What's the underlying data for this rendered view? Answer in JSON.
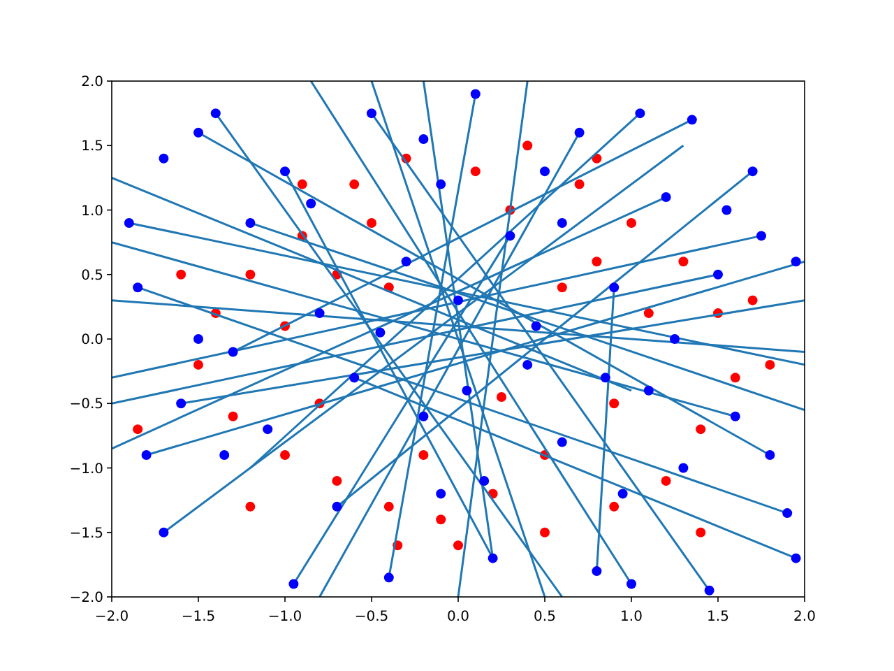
{
  "chart_data": {
    "type": "scatter",
    "xlim": [
      -2,
      2
    ],
    "ylim": [
      -2,
      2
    ],
    "xticks": [
      {
        "value": -2,
        "label": "−2.0"
      },
      {
        "value": -1.5,
        "label": "−1.5"
      },
      {
        "value": -1,
        "label": "−1.0"
      },
      {
        "value": -0.5,
        "label": "−0.5"
      },
      {
        "value": 0,
        "label": "0.0"
      },
      {
        "value": 0.5,
        "label": "0.5"
      },
      {
        "value": 1,
        "label": "1.0"
      },
      {
        "value": 1.5,
        "label": "1.5"
      },
      {
        "value": 2,
        "label": "2.0"
      }
    ],
    "yticks": [
      {
        "value": -2,
        "label": "−2.0"
      },
      {
        "value": -1.5,
        "label": "−1.5"
      },
      {
        "value": -1,
        "label": "−1.0"
      },
      {
        "value": -0.5,
        "label": "−0.5"
      },
      {
        "value": 0,
        "label": "0.0"
      },
      {
        "value": 0.5,
        "label": "0.5"
      },
      {
        "value": 1,
        "label": "1.0"
      },
      {
        "value": 1.5,
        "label": "1.5"
      },
      {
        "value": 2,
        "label": "2.0"
      }
    ],
    "grid": false,
    "series": [
      {
        "color": "#ff0000",
        "marker": "circle",
        "x": [
          -0.9,
          -0.6,
          -0.3,
          0.1,
          0.4,
          0.7,
          1.0,
          1.3,
          1.5,
          1.6,
          1.4,
          1.2,
          0.9,
          0.5,
          0.2,
          -0.1,
          -0.4,
          -0.7,
          -1.0,
          -1.3,
          -1.5,
          -1.4,
          -1.2,
          -0.5,
          0.3,
          0.8,
          1.1,
          0.9,
          0.5,
          -0.2,
          -0.8,
          -1.0,
          -0.7,
          1.8,
          -1.85,
          0.0,
          -0.35,
          0.6,
          -0.4,
          0.25,
          1.7,
          -1.6,
          0.8,
          -0.9,
          1.4,
          -1.2
        ],
        "values": [
          0.8,
          1.2,
          1.4,
          1.3,
          1.5,
          1.2,
          0.9,
          0.6,
          0.2,
          -0.3,
          -0.7,
          -1.1,
          -1.3,
          -1.5,
          -1.2,
          -1.4,
          -1.3,
          -1.1,
          -0.9,
          -0.6,
          -0.2,
          0.2,
          0.5,
          0.9,
          1.0,
          0.6,
          0.2,
          -0.5,
          -0.9,
          -0.9,
          -0.5,
          0.1,
          0.5,
          -0.2,
          -0.7,
          -1.6,
          -1.6,
          0.4,
          0.4,
          -0.45,
          0.3,
          0.5,
          1.4,
          1.2,
          -1.5,
          -1.3
        ]
      },
      {
        "type": "line",
        "color": "#1f77b4",
        "marker": "none",
        "line_style": "solid",
        "x": [
          -2,
          1.0
        ],
        "values": [
          1.25,
          -0.4
        ]
      },
      {
        "type": "line",
        "color": "#1f77b4",
        "marker": "none",
        "line_style": "solid",
        "x": [
          -2,
          2
        ],
        "values": [
          0.3,
          -0.1
        ]
      },
      {
        "type": "line",
        "color": "#1f77b4",
        "marker": "none",
        "line_style": "solid",
        "x": [
          -2,
          1.5
        ],
        "values": [
          -0.5,
          0.5
        ]
      },
      {
        "type": "line",
        "color": "#1f77b4",
        "marker": "none",
        "line_style": "solid",
        "x": [
          -2,
          1.2
        ],
        "values": [
          -0.85,
          1.1
        ]
      },
      {
        "type": "line",
        "color": "#1f77b4",
        "marker": "none",
        "line_style": "solid",
        "x": [
          -1.4,
          0.6
        ],
        "values": [
          1.75,
          -2
        ]
      },
      {
        "type": "line",
        "color": "#1f77b4",
        "marker": "none",
        "line_style": "solid",
        "x": [
          -0.95,
          0.3
        ],
        "values": [
          -1.9,
          0.8
        ]
      },
      {
        "type": "line",
        "color": "#1f77b4",
        "marker": "none",
        "line_style": "solid",
        "x": [
          -0.5,
          0.5
        ],
        "values": [
          2,
          -2
        ]
      },
      {
        "type": "line",
        "color": "#1f77b4",
        "marker": "none",
        "line_style": "solid",
        "x": [
          -0.2,
          0.2
        ],
        "values": [
          2,
          -1.7
        ]
      },
      {
        "type": "line",
        "color": "#1f77b4",
        "marker": "none",
        "line_style": "solid",
        "x": [
          0.1,
          -0.4
        ],
        "values": [
          1.9,
          -1.85
        ]
      },
      {
        "type": "line",
        "color": "#1f77b4",
        "marker": "none",
        "line_style": "solid",
        "x": [
          0.4,
          0.0
        ],
        "values": [
          2,
          -2
        ]
      },
      {
        "type": "line",
        "color": "#1f77b4",
        "marker": "none",
        "line_style": "solid",
        "x": [
          0.7,
          -0.8
        ],
        "values": [
          1.6,
          -2
        ]
      },
      {
        "type": "line",
        "color": "#1f77b4",
        "marker": "none",
        "line_style": "solid",
        "x": [
          1.05,
          -1.2
        ],
        "values": [
          1.75,
          -1.0
        ]
      },
      {
        "type": "line",
        "color": "#1f77b4",
        "marker": "none",
        "line_style": "solid",
        "x": [
          1.35,
          -1.3
        ],
        "values": [
          1.7,
          -0.1
        ]
      },
      {
        "type": "line",
        "color": "#1f77b4",
        "marker": "none",
        "line_style": "solid",
        "x": [
          1.75,
          -2
        ],
        "values": [
          0.8,
          -0.3
        ]
      },
      {
        "type": "line",
        "color": "#1f77b4",
        "marker": "none",
        "line_style": "solid",
        "x": [
          2,
          -1.6
        ],
        "values": [
          0.3,
          -0.5
        ]
      },
      {
        "type": "line",
        "color": "#1f77b4",
        "marker": "none",
        "line_style": "solid",
        "x": [
          2,
          -1.9
        ],
        "values": [
          -0.2,
          0.9
        ]
      },
      {
        "type": "line",
        "color": "#1f77b4",
        "marker": "none",
        "line_style": "solid",
        "x": [
          1.8,
          -1.5
        ],
        "values": [
          -0.9,
          1.6
        ]
      },
      {
        "type": "line",
        "color": "#1f77b4",
        "marker": "none",
        "line_style": "solid",
        "x": [
          1.95,
          -0.6
        ],
        "values": [
          -1.7,
          -0.3
        ]
      },
      {
        "type": "line",
        "color": "#1f77b4",
        "marker": "none",
        "line_style": "solid",
        "x": [
          1.45,
          -0.5
        ],
        "values": [
          -1.95,
          1.75
        ]
      },
      {
        "type": "line",
        "color": "#1f77b4",
        "marker": "none",
        "line_style": "solid",
        "x": [
          1.0,
          -0.85
        ],
        "values": [
          -1.9,
          2
        ]
      },
      {
        "type": "line",
        "color": "#1f77b4",
        "marker": "none",
        "line_style": "solid",
        "x": [
          0.8,
          0.9
        ],
        "values": [
          -1.8,
          0.4
        ]
      },
      {
        "type": "line",
        "color": "#1f77b4",
        "marker": "none",
        "line_style": "solid",
        "x": [
          -1.7,
          1.3
        ],
        "values": [
          -1.5,
          1.5
        ]
      },
      {
        "type": "line",
        "color": "#1f77b4",
        "marker": "none",
        "line_style": "solid",
        "x": [
          -1.8,
          2
        ],
        "values": [
          -0.9,
          0.6
        ]
      },
      {
        "type": "line",
        "color": "#1f77b4",
        "marker": "none",
        "line_style": "solid",
        "x": [
          -0.7,
          1.7
        ],
        "values": [
          -1.3,
          1.3
        ]
      },
      {
        "type": "line",
        "color": "#1f77b4",
        "marker": "none",
        "line_style": "solid",
        "x": [
          0.2,
          -1.0
        ],
        "values": [
          -1.7,
          1.3
        ]
      },
      {
        "type": "line",
        "color": "#1f77b4",
        "marker": "none",
        "line_style": "solid",
        "x": [
          -1.85,
          1.9
        ],
        "values": [
          0.4,
          -1.35
        ]
      },
      {
        "type": "line",
        "color": "#1f77b4",
        "marker": "none",
        "line_style": "solid",
        "x": [
          -1.2,
          2
        ],
        "values": [
          0.9,
          -0.55
        ]
      },
      {
        "type": "line",
        "color": "#1f77b4",
        "marker": "none",
        "line_style": "solid",
        "x": [
          1.6,
          -2
        ],
        "values": [
          -0.6,
          0.75
        ]
      },
      {
        "color": "#0000ff",
        "marker": "circle",
        "x": [
          -1.9,
          -1.8,
          -1.7,
          -1.7,
          -1.5,
          -1.4,
          -1.3,
          -1.1,
          -1.0,
          -0.95,
          -0.8,
          -0.6,
          -0.5,
          -0.4,
          -0.3,
          -0.2,
          -0.1,
          0.0,
          0.05,
          0.1,
          0.2,
          0.3,
          0.4,
          0.5,
          0.6,
          0.7,
          0.8,
          0.9,
          1.0,
          1.05,
          1.1,
          1.2,
          1.3,
          1.35,
          1.45,
          1.5,
          1.6,
          1.7,
          1.75,
          1.8,
          1.9,
          1.95,
          1.95,
          -1.85,
          -1.6,
          -1.2,
          -0.7,
          -0.2,
          0.45,
          0.95,
          1.25,
          -1.35,
          -0.85,
          0.15,
          0.6,
          -0.1,
          1.55,
          -1.5,
          0.85,
          -0.45
        ],
        "values": [
          0.9,
          -0.9,
          1.4,
          -1.5,
          1.6,
          1.75,
          -0.1,
          -0.7,
          1.3,
          -1.9,
          0.2,
          -0.3,
          1.75,
          -1.85,
          0.6,
          -0.6,
          1.2,
          0.3,
          -0.4,
          1.9,
          -1.7,
          0.8,
          -0.2,
          1.3,
          -0.8,
          1.6,
          -1.8,
          0.4,
          -1.9,
          1.75,
          -0.4,
          1.1,
          -1.0,
          1.7,
          -1.95,
          0.5,
          -0.6,
          1.3,
          0.8,
          -0.9,
          -1.35,
          -1.7,
          0.6,
          0.4,
          -0.5,
          0.9,
          -1.3,
          1.55,
          0.1,
          -1.2,
          0.0,
          -0.9,
          1.05,
          -1.1,
          0.9,
          -1.2,
          1.0,
          0.0,
          -0.3,
          0.05
        ]
      }
    ]
  }
}
